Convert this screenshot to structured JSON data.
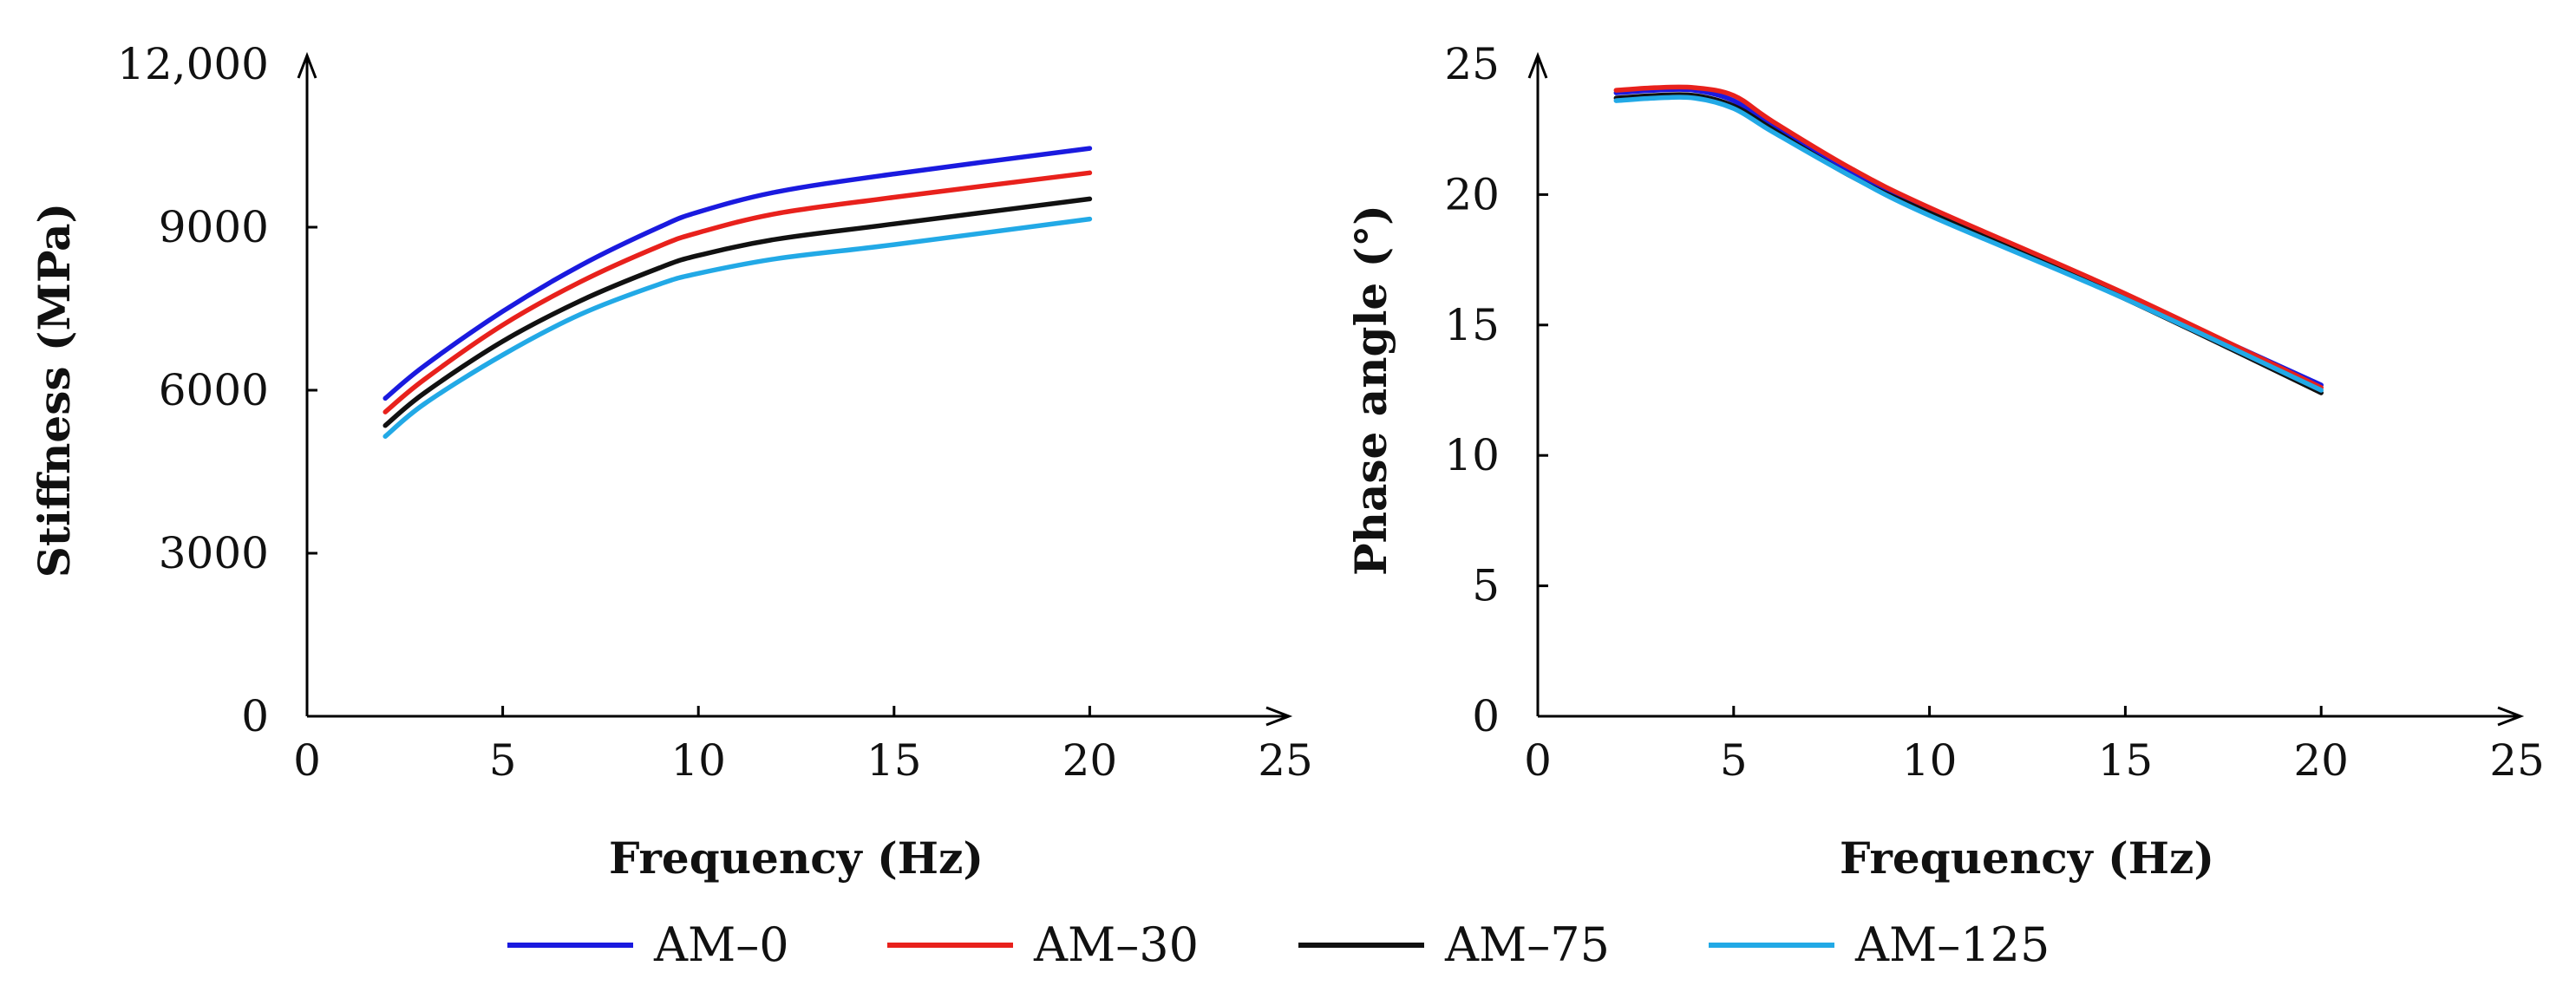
{
  "chart_data": [
    {
      "type": "line",
      "title": "",
      "xlabel": "Frequency (Hz)",
      "ylabel": "Stiffness (MPa)",
      "xlim": [
        0,
        25
      ],
      "ylim": [
        0,
        12000
      ],
      "xticks": [
        "0",
        "5",
        "10",
        "15",
        "20",
        "25"
      ],
      "yticks": [
        "0",
        "3000",
        "6000",
        "9000",
        "12,000"
      ],
      "x": [
        2,
        3,
        5,
        7,
        9,
        10,
        12,
        15,
        20
      ],
      "series": [
        {
          "name": "AM–0",
          "color": "#1a1adf",
          "values": [
            5850,
            6450,
            7450,
            8300,
            9000,
            9280,
            9650,
            9980,
            10450
          ]
        },
        {
          "name": "AM–30",
          "color": "#e8211c",
          "values": [
            5600,
            6200,
            7200,
            8000,
            8650,
            8900,
            9250,
            9550,
            10000
          ]
        },
        {
          "name": "AM–75",
          "color": "#111111",
          "values": [
            5350,
            5950,
            6900,
            7650,
            8250,
            8480,
            8780,
            9060,
            9520
          ]
        },
        {
          "name": "AM–125",
          "color": "#22a9e6",
          "values": [
            5150,
            5750,
            6650,
            7400,
            7950,
            8150,
            8420,
            8680,
            9150
          ]
        }
      ]
    },
    {
      "type": "line",
      "title": "",
      "xlabel": "Frequency (Hz)",
      "ylabel": "Phase angle (°)",
      "xlim": [
        0,
        25
      ],
      "ylim": [
        0,
        25
      ],
      "xticks": [
        "0",
        "5",
        "10",
        "15",
        "20",
        "25"
      ],
      "yticks": [
        "0",
        "5",
        "10",
        "15",
        "20",
        "25"
      ],
      "x": [
        2,
        3,
        4,
        5,
        6,
        8,
        10,
        15,
        20
      ],
      "series": [
        {
          "name": "AM–0",
          "color": "#1a1adf",
          "values": [
            23.9,
            24.0,
            24.0,
            23.6,
            22.6,
            20.8,
            19.4,
            16.1,
            12.7
          ]
        },
        {
          "name": "AM–30",
          "color": "#e8211c",
          "values": [
            24.0,
            24.1,
            24.1,
            23.8,
            22.8,
            21.0,
            19.5,
            16.2,
            12.6
          ]
        },
        {
          "name": "AM–75",
          "color": "#111111",
          "values": [
            23.7,
            23.8,
            23.8,
            23.4,
            22.5,
            20.7,
            19.3,
            16.0,
            12.4
          ]
        },
        {
          "name": "AM–125",
          "color": "#22a9e6",
          "values": [
            23.6,
            23.7,
            23.7,
            23.3,
            22.4,
            20.7,
            19.2,
            16.0,
            12.5
          ]
        }
      ]
    }
  ],
  "legend": {
    "items": [
      {
        "label": "AM–0",
        "color": "#1a1adf"
      },
      {
        "label": "AM–30",
        "color": "#e8211c"
      },
      {
        "label": "AM–75",
        "color": "#111111"
      },
      {
        "label": "AM–125",
        "color": "#22a9e6"
      }
    ]
  }
}
